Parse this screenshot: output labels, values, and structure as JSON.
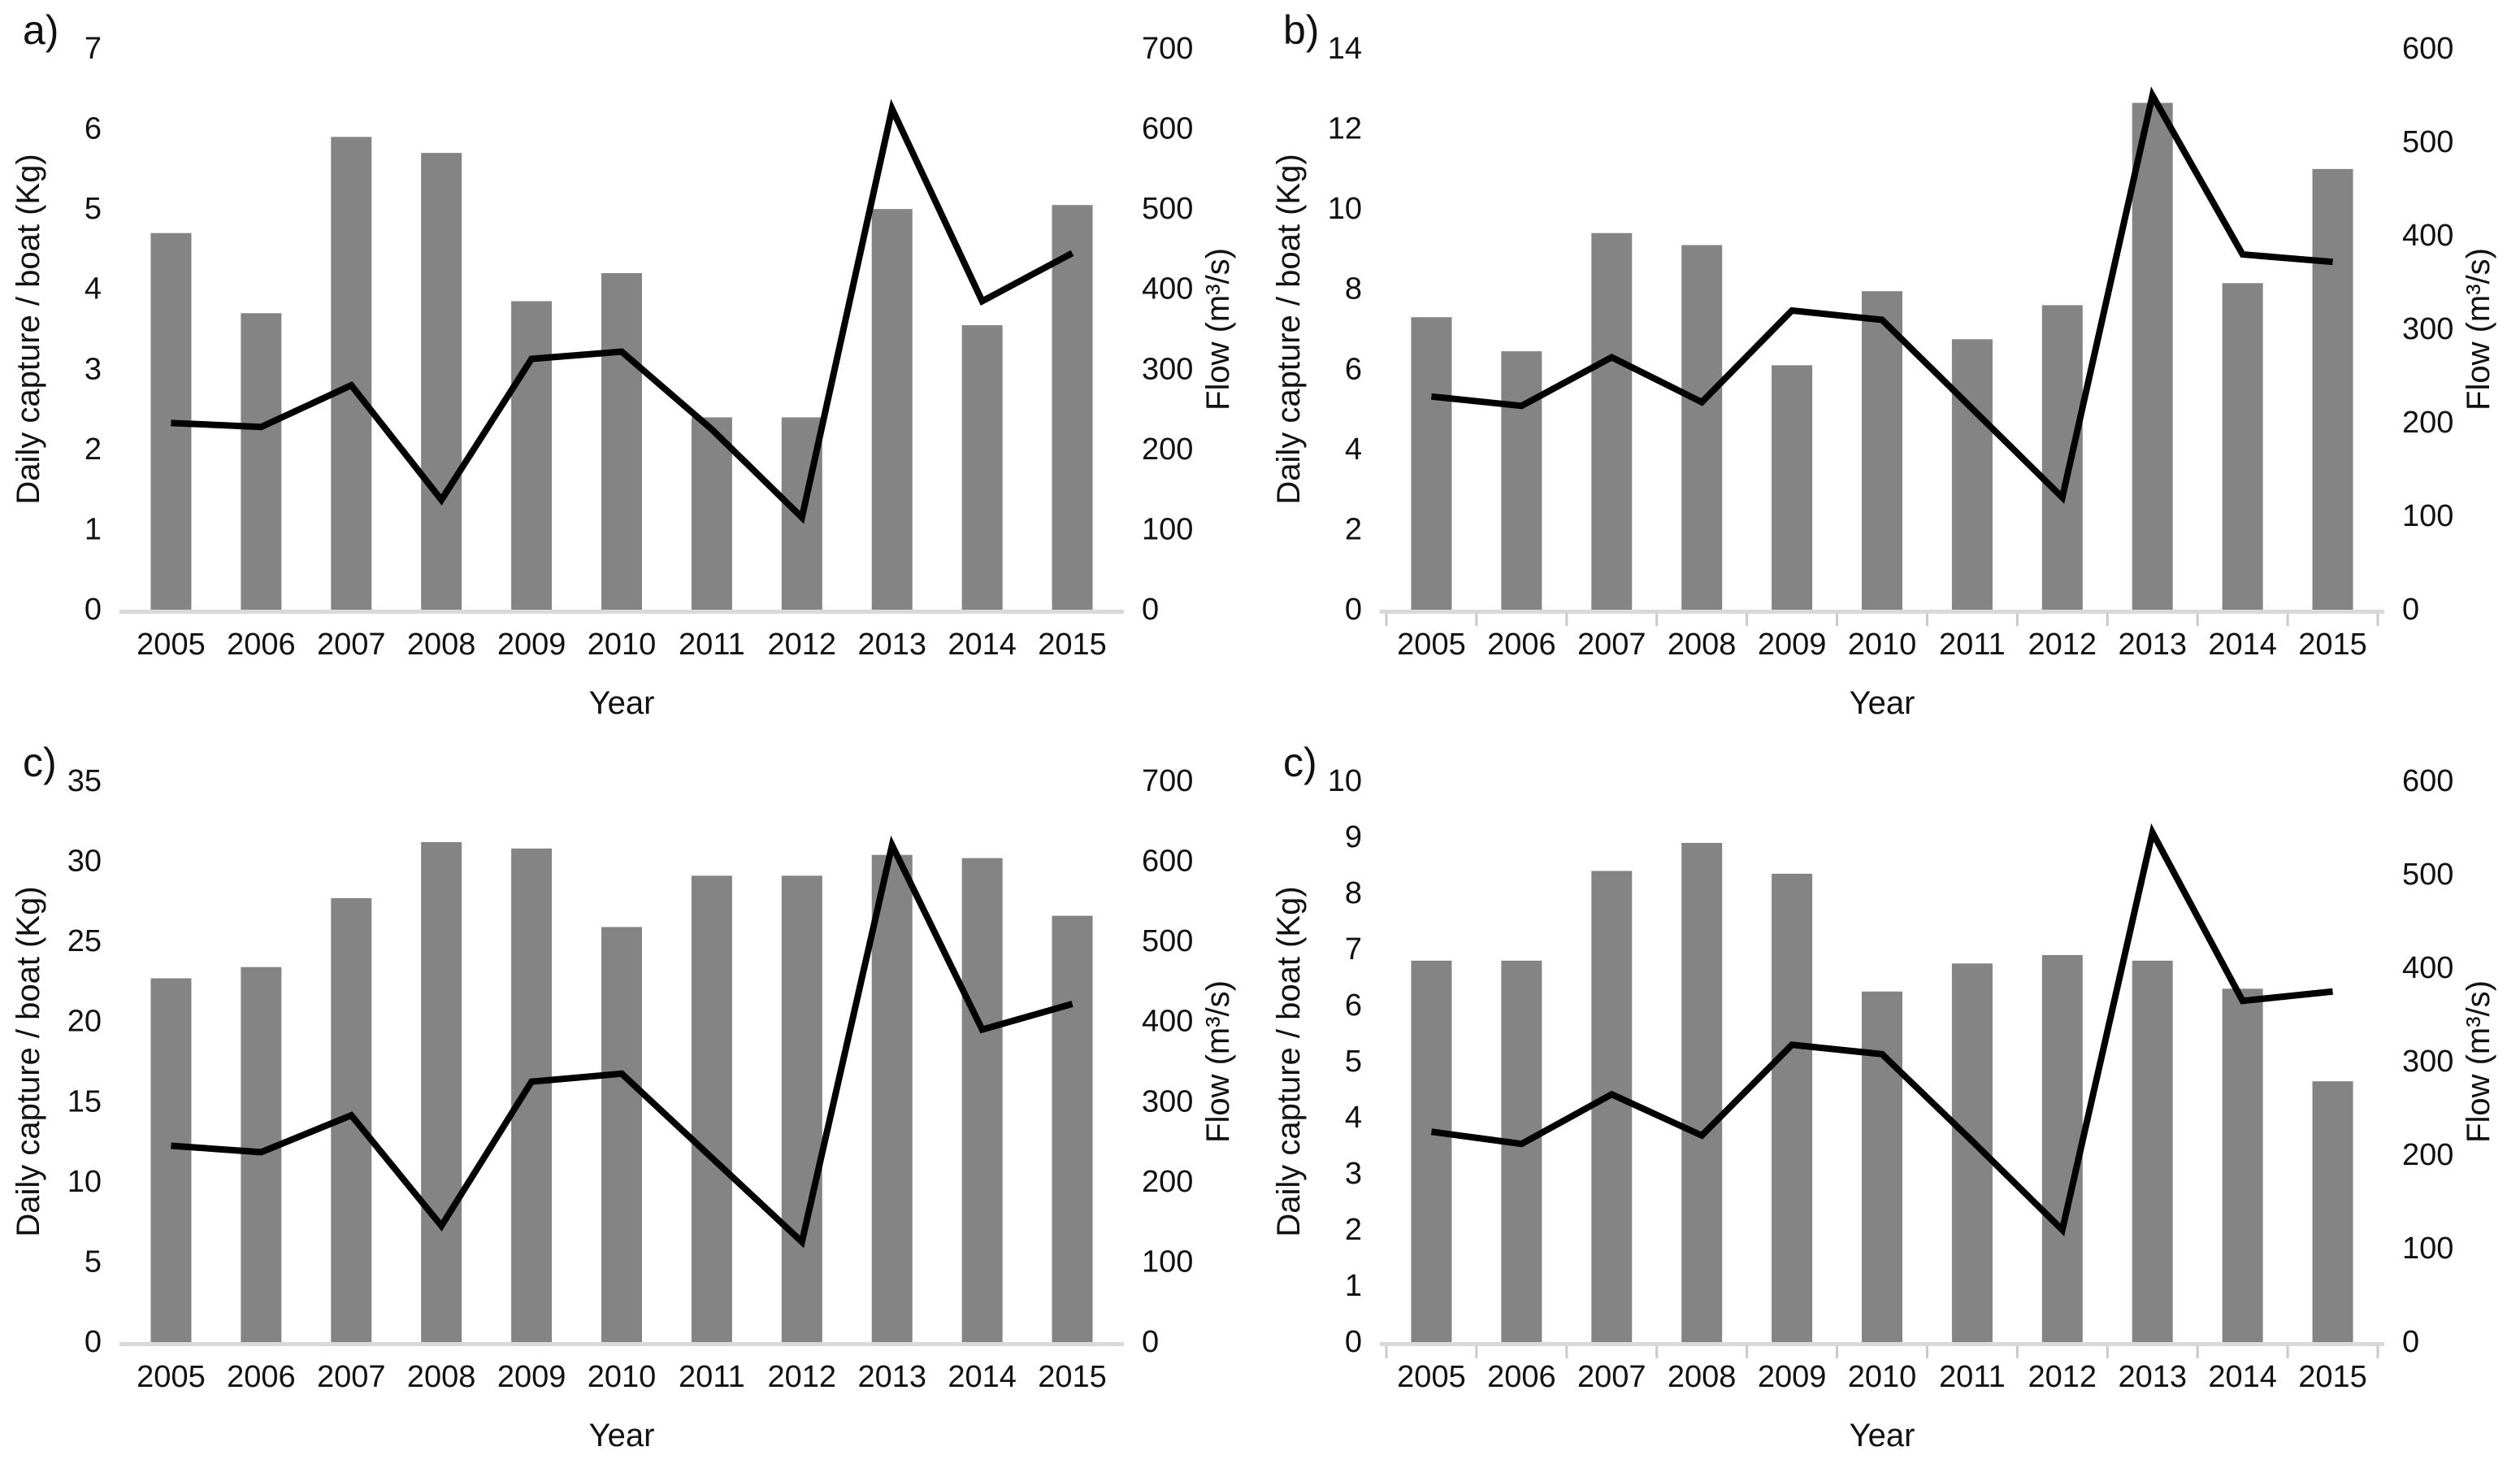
{
  "figure": {
    "description": "Four combo bar-line charts of daily fish capture per boat (bars, left axis) and river flow (line, right axis) by year 2005-2015"
  },
  "chart_data": [
    {
      "panel_label": "a)",
      "type": "bar+line",
      "categories": [
        "2005",
        "2006",
        "2007",
        "2008",
        "2009",
        "2010",
        "2011",
        "2012",
        "2013",
        "2014",
        "2015"
      ],
      "series": [
        {
          "name": "Daily capture / boat (Kg)",
          "type": "bar",
          "axis": "left",
          "values": [
            4.7,
            3.7,
            5.9,
            5.7,
            3.85,
            4.2,
            2.4,
            2.4,
            5.0,
            3.55,
            5.05
          ]
        },
        {
          "name": "Flow (m³/s)",
          "type": "line",
          "axis": "right",
          "values": [
            233,
            228,
            280,
            137,
            313,
            322,
            225,
            115,
            625,
            385,
            445
          ]
        }
      ],
      "xlabel": "Year",
      "left_axis": {
        "title": "Daily capture / boat (Kg)",
        "min": 0,
        "max": 7,
        "ticks": [
          "0",
          "1",
          "2",
          "3",
          "4",
          "5",
          "6",
          "7"
        ]
      },
      "right_axis": {
        "title": "Flow (m³/s)",
        "min": 0,
        "max": 700,
        "ticks": [
          "0",
          "100",
          "200",
          "300",
          "400",
          "500",
          "600",
          "700"
        ]
      },
      "x_tick_marks": false,
      "bar_color": "#848484",
      "line_color": "#000000",
      "baseline_color": "#d9d9d9"
    },
    {
      "panel_label": "b)",
      "type": "bar+line",
      "categories": [
        "2005",
        "2006",
        "2007",
        "2008",
        "2009",
        "2010",
        "2011",
        "2012",
        "2013",
        "2014",
        "2015"
      ],
      "series": [
        {
          "name": "Daily capture / boat (Kg)",
          "type": "bar",
          "axis": "left",
          "values": [
            7.3,
            6.45,
            9.4,
            9.1,
            6.1,
            7.95,
            6.75,
            7.6,
            12.65,
            8.15,
            11.0
          ]
        },
        {
          "name": "Flow (m³/s)",
          "type": "line",
          "axis": "right",
          "values": [
            228,
            218,
            270,
            222,
            320,
            310,
            215,
            120,
            550,
            380,
            372
          ]
        }
      ],
      "xlabel": "Year",
      "left_axis": {
        "title": "Daily capture / boat (Kg)",
        "min": 0,
        "max": 14,
        "ticks": [
          "0",
          "2",
          "4",
          "6",
          "8",
          "10",
          "12",
          "14"
        ]
      },
      "right_axis": {
        "title": "Flow (m³/s)",
        "min": 0,
        "max": 600,
        "ticks": [
          "0",
          "100",
          "200",
          "300",
          "400",
          "500",
          "600"
        ]
      },
      "x_tick_marks": true,
      "bar_color": "#848484",
      "line_color": "#000000",
      "baseline_color": "#d9d9d9"
    },
    {
      "panel_label": "c)",
      "type": "bar+line",
      "categories": [
        "2005",
        "2006",
        "2007",
        "2008",
        "2009",
        "2010",
        "2011",
        "2012",
        "2013",
        "2014",
        "2015"
      ],
      "series": [
        {
          "name": "Daily capture / boat (Kg)",
          "type": "bar",
          "axis": "left",
          "values": [
            22.7,
            23.4,
            27.7,
            31.2,
            30.8,
            25.9,
            29.1,
            29.1,
            30.4,
            30.2,
            26.6
          ]
        },
        {
          "name": "Flow (m³/s)",
          "type": "line",
          "axis": "right",
          "values": [
            245,
            237,
            283,
            145,
            325,
            335,
            230,
            125,
            620,
            390,
            422
          ]
        }
      ],
      "xlabel": "Year",
      "left_axis": {
        "title": "Daily capture / boat (Kg)",
        "min": 0,
        "max": 35,
        "ticks": [
          "0",
          "5",
          "10",
          "15",
          "20",
          "25",
          "30",
          "35"
        ]
      },
      "right_axis": {
        "title": "Flow (m³/s)",
        "min": 0,
        "max": 700,
        "ticks": [
          "0",
          "100",
          "200",
          "300",
          "400",
          "500",
          "600",
          "700"
        ]
      },
      "x_tick_marks": false,
      "bar_color": "#848484",
      "line_color": "#000000",
      "baseline_color": "#d9d9d9"
    },
    {
      "panel_label": "c)",
      "type": "bar+line",
      "categories": [
        "2005",
        "2006",
        "2007",
        "2008",
        "2009",
        "2010",
        "2011",
        "2012",
        "2013",
        "2014",
        "2015"
      ],
      "series": [
        {
          "name": "Daily capture / boat (Kg)",
          "type": "bar",
          "axis": "left",
          "values": [
            6.8,
            6.8,
            8.4,
            8.9,
            8.35,
            6.25,
            6.75,
            6.9,
            6.8,
            6.3,
            4.65
          ]
        },
        {
          "name": "Flow (m³/s)",
          "type": "line",
          "axis": "right",
          "values": [
            225,
            212,
            265,
            221,
            318,
            308,
            215,
            120,
            545,
            365,
            375
          ]
        }
      ],
      "xlabel": "Year",
      "left_axis": {
        "title": "Daily capture / boat (Kg)",
        "min": 0,
        "max": 10,
        "ticks": [
          "0",
          "1",
          "2",
          "3",
          "4",
          "5",
          "6",
          "7",
          "8",
          "9",
          "10"
        ]
      },
      "right_axis": {
        "title": "Flow (m³/s)",
        "min": 0,
        "max": 600,
        "ticks": [
          "0",
          "100",
          "200",
          "300",
          "400",
          "500",
          "600"
        ]
      },
      "x_tick_marks": true,
      "bar_color": "#848484",
      "line_color": "#000000",
      "baseline_color": "#d9d9d9"
    }
  ]
}
